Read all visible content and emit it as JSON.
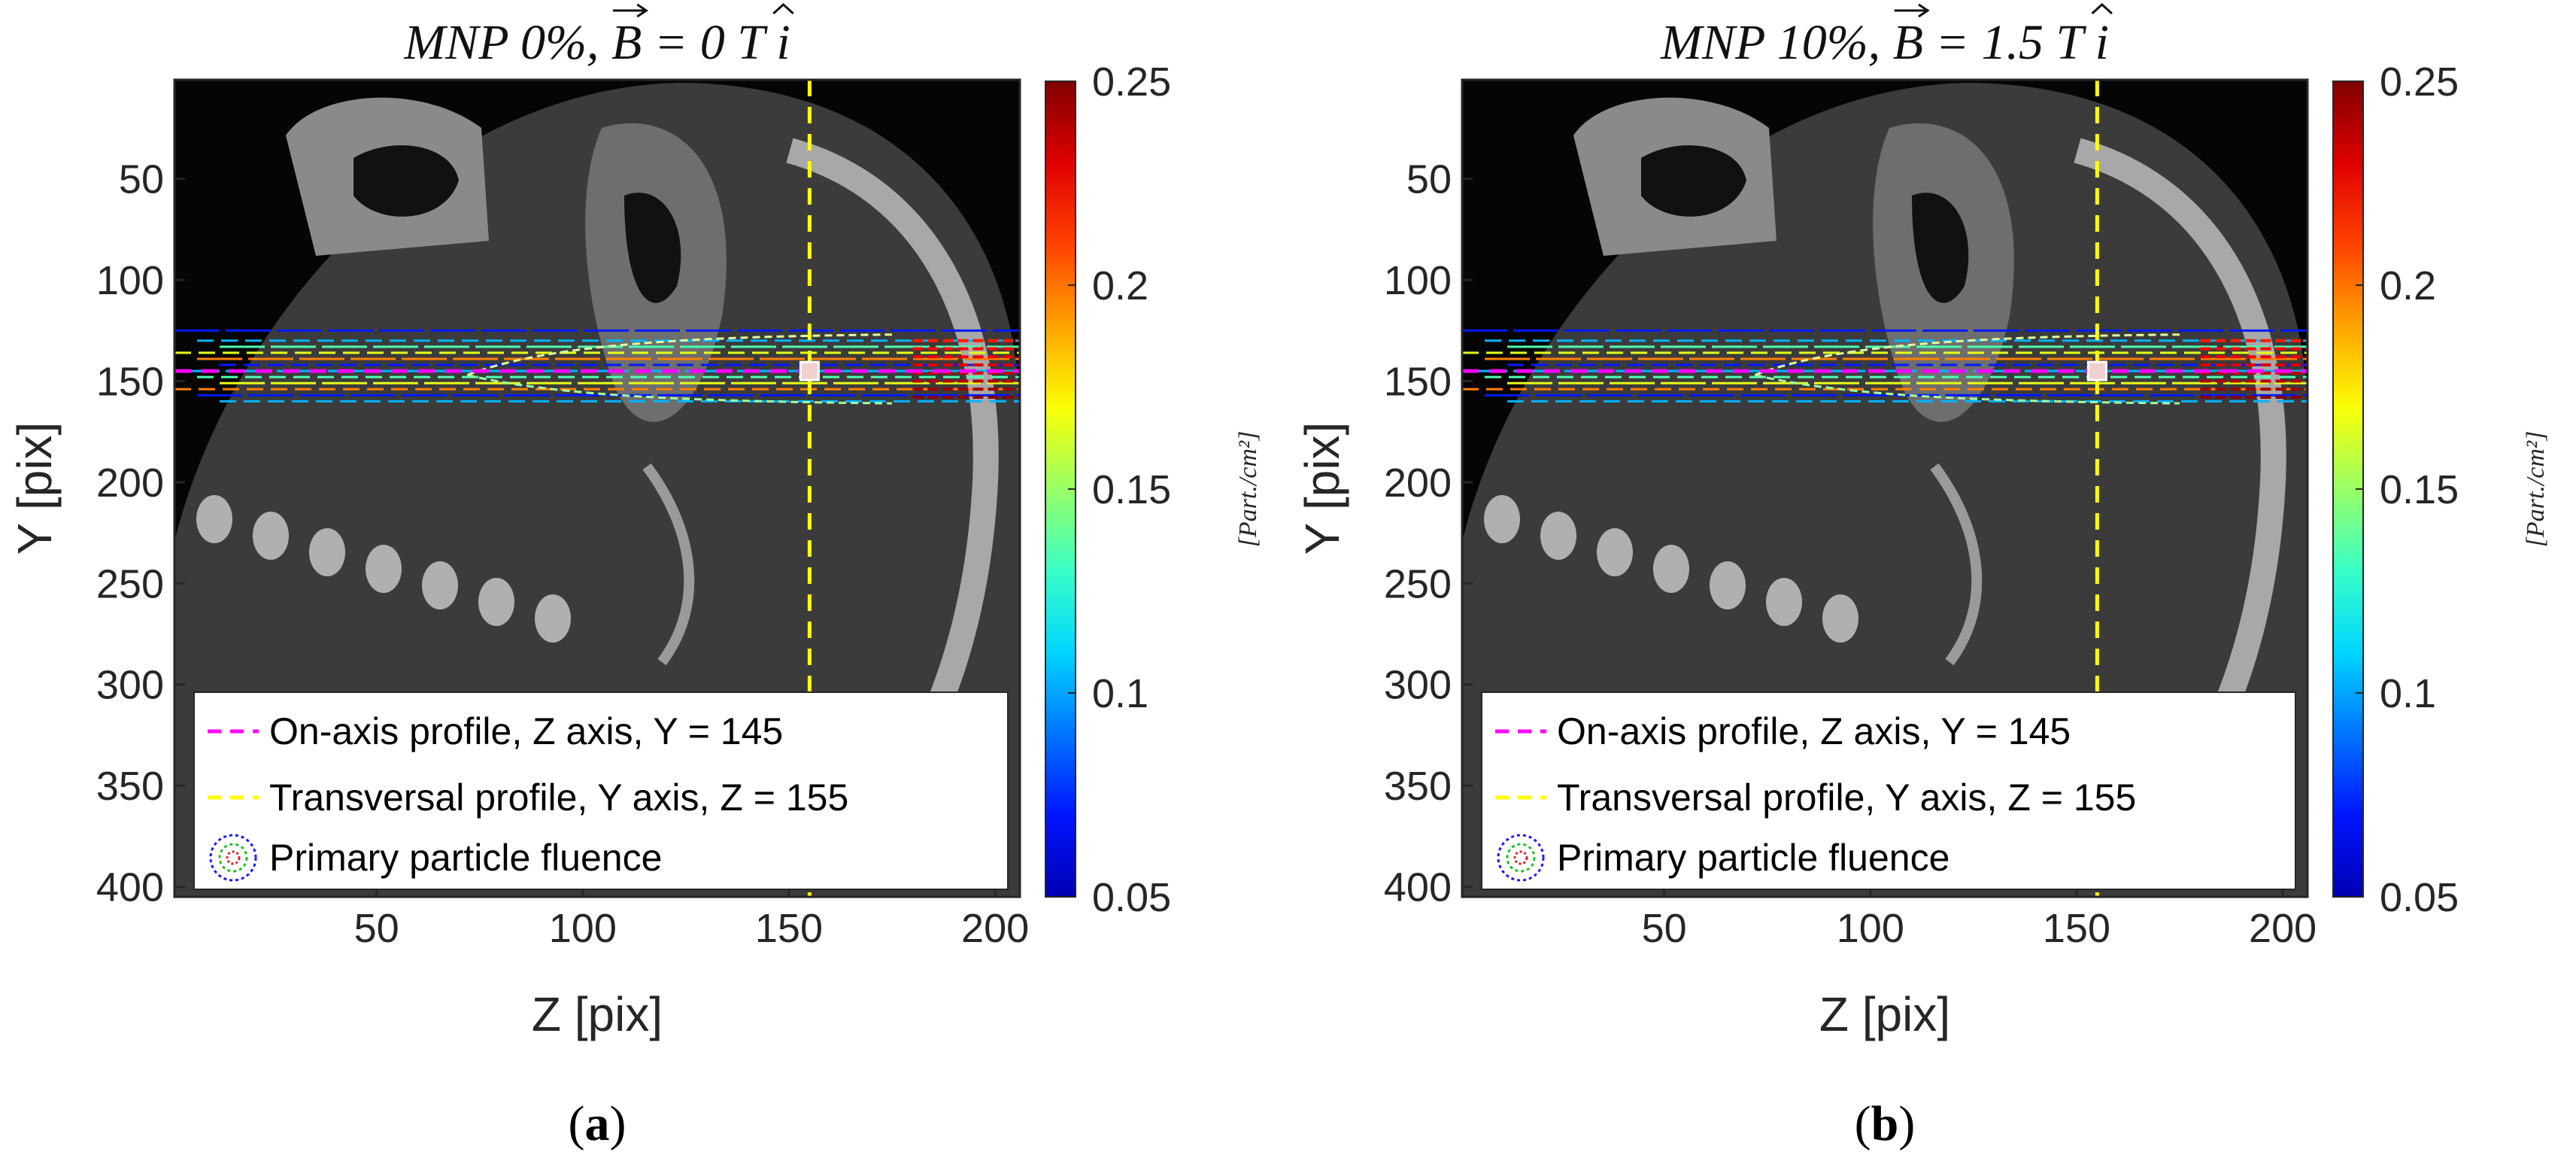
{
  "figure": {
    "captions": [
      "(a)",
      "(b)"
    ],
    "colors": {
      "magenta": "#ff00ff",
      "yellow": "#ffff00",
      "axis": "#262626"
    }
  },
  "chart_data": [
    {
      "type": "heatmap",
      "panel": "a",
      "title": "MNP 0%, B⃗ = 0 T î",
      "title_parts": {
        "prefix": "MNP 0%, ",
        "vec": "B",
        "mid": " = 0 T ",
        "unit_vec": "i"
      },
      "xlabel": "Z [pix]",
      "ylabel": "Y [pix]",
      "xlim": [
        1,
        206
      ],
      "ylim": [
        1,
        405
      ],
      "xticks": [
        50,
        100,
        150,
        200
      ],
      "yticks": [
        50,
        100,
        150,
        200,
        250,
        300,
        350,
        400
      ],
      "colorbar": {
        "min": 0.05,
        "max": 0.25,
        "ticks": [
          0.05,
          0.1,
          0.15,
          0.2,
          0.25
        ],
        "tick_labels": [
          "0.05",
          "0.1",
          "0.15",
          "0.2",
          "0.25"
        ],
        "label": "[Part./cm²]",
        "colormap": "jet"
      },
      "profiles": {
        "on_axis_y": 145,
        "transversal_z": 155
      },
      "legend": {
        "position": "bottom-left",
        "entries": [
          "On-axis profile, Z axis, Y = 145",
          "Transversal profile, Y axis, Z = 155",
          "Primary particle fluence"
        ]
      }
    },
    {
      "type": "heatmap",
      "panel": "b",
      "title": "MNP 10%, B⃗ = 1.5 T î",
      "title_parts": {
        "prefix": "MNP 10%, ",
        "vec": "B",
        "mid": " = 1.5 T ",
        "unit_vec": "i"
      },
      "xlabel": "Z [pix]",
      "ylabel": "Y [pix]",
      "xlim": [
        1,
        206
      ],
      "ylim": [
        1,
        405
      ],
      "xticks": [
        50,
        100,
        150,
        200
      ],
      "yticks": [
        50,
        100,
        150,
        200,
        250,
        300,
        350,
        400
      ],
      "colorbar": {
        "min": 0.05,
        "max": 0.25,
        "ticks": [
          0.05,
          0.1,
          0.15,
          0.2,
          0.25
        ],
        "tick_labels": [
          "0.05",
          "0.1",
          "0.15",
          "0.2",
          "0.25"
        ],
        "label": "[Part./cm²]",
        "colormap": "jet"
      },
      "profiles": {
        "on_axis_y": 145,
        "transversal_z": 155
      },
      "legend": {
        "position": "bottom-left",
        "entries": [
          "On-axis profile, Z axis, Y = 145",
          "Transversal profile, Y axis, Z = 155",
          "Primary particle fluence"
        ]
      }
    }
  ]
}
